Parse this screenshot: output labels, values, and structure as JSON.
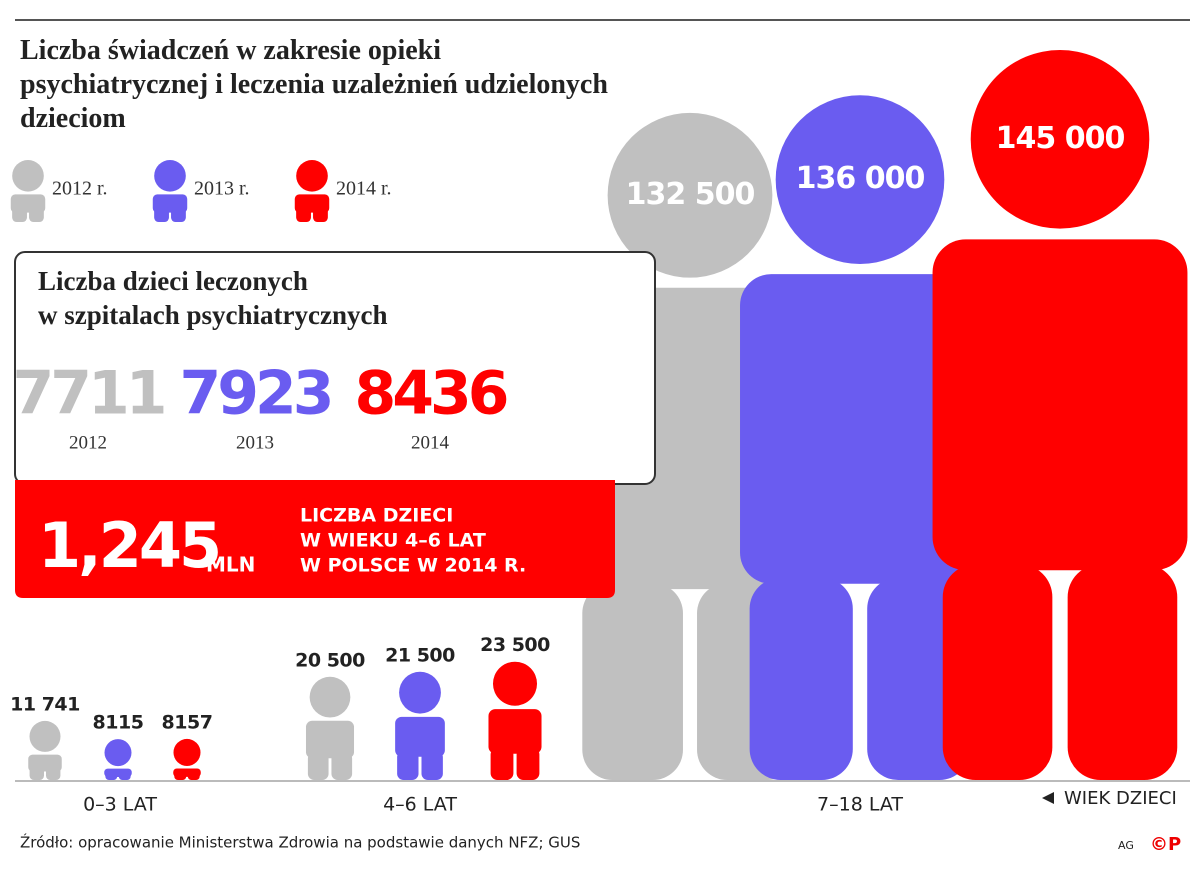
{
  "chart_data": {
    "type": "pictograph",
    "title": "Liczba świadczeń w zakresie opieki psychiatrycznej i leczenia uzależnień udzielonych dzieciom",
    "categories": [
      "0–3 LAT",
      "4–6 LAT",
      "7–18 LAT"
    ],
    "axis_label": "WIEK DZIECI",
    "series": [
      {
        "name": "2012 r.",
        "color": "#c0c0c0",
        "values": [
          11741,
          20500,
          132500
        ],
        "value_labels": [
          "11 741",
          "20 500",
          "132 500"
        ]
      },
      {
        "name": "2013 r.",
        "color": "#6a5cf0",
        "values": [
          8115,
          21500,
          136000
        ],
        "value_labels": [
          "8115",
          "21 500",
          "136 000"
        ]
      },
      {
        "name": "2014 r.",
        "color": "#ff0000",
        "values": [
          8157,
          23500,
          145000
        ],
        "value_labels": [
          "8157",
          "23 500",
          "145 000"
        ]
      }
    ]
  },
  "inset": {
    "title_lines": [
      "Liczba dzieci leczonych",
      "w szpitalach psychiatrycznych"
    ],
    "items": [
      {
        "value": 7711,
        "year": "2012",
        "color": "#c0c0c0"
      },
      {
        "value": 7923,
        "year": "2013",
        "color": "#6a5cf0"
      },
      {
        "value": 8436,
        "year": "2014",
        "color": "#ff0000"
      }
    ],
    "highlight": {
      "number": "1,245",
      "unit": "MLN",
      "text_lines": [
        "LICZBA DZIECI",
        "W WIEKU 4–6 LAT",
        "W POLSCE W 2014 R."
      ]
    }
  },
  "footer": {
    "source": "Źródło: opracowanie Ministerstwa Zdrowia na podstawie danych NFZ; GUS",
    "credit": "AG",
    "logo": "©P"
  }
}
